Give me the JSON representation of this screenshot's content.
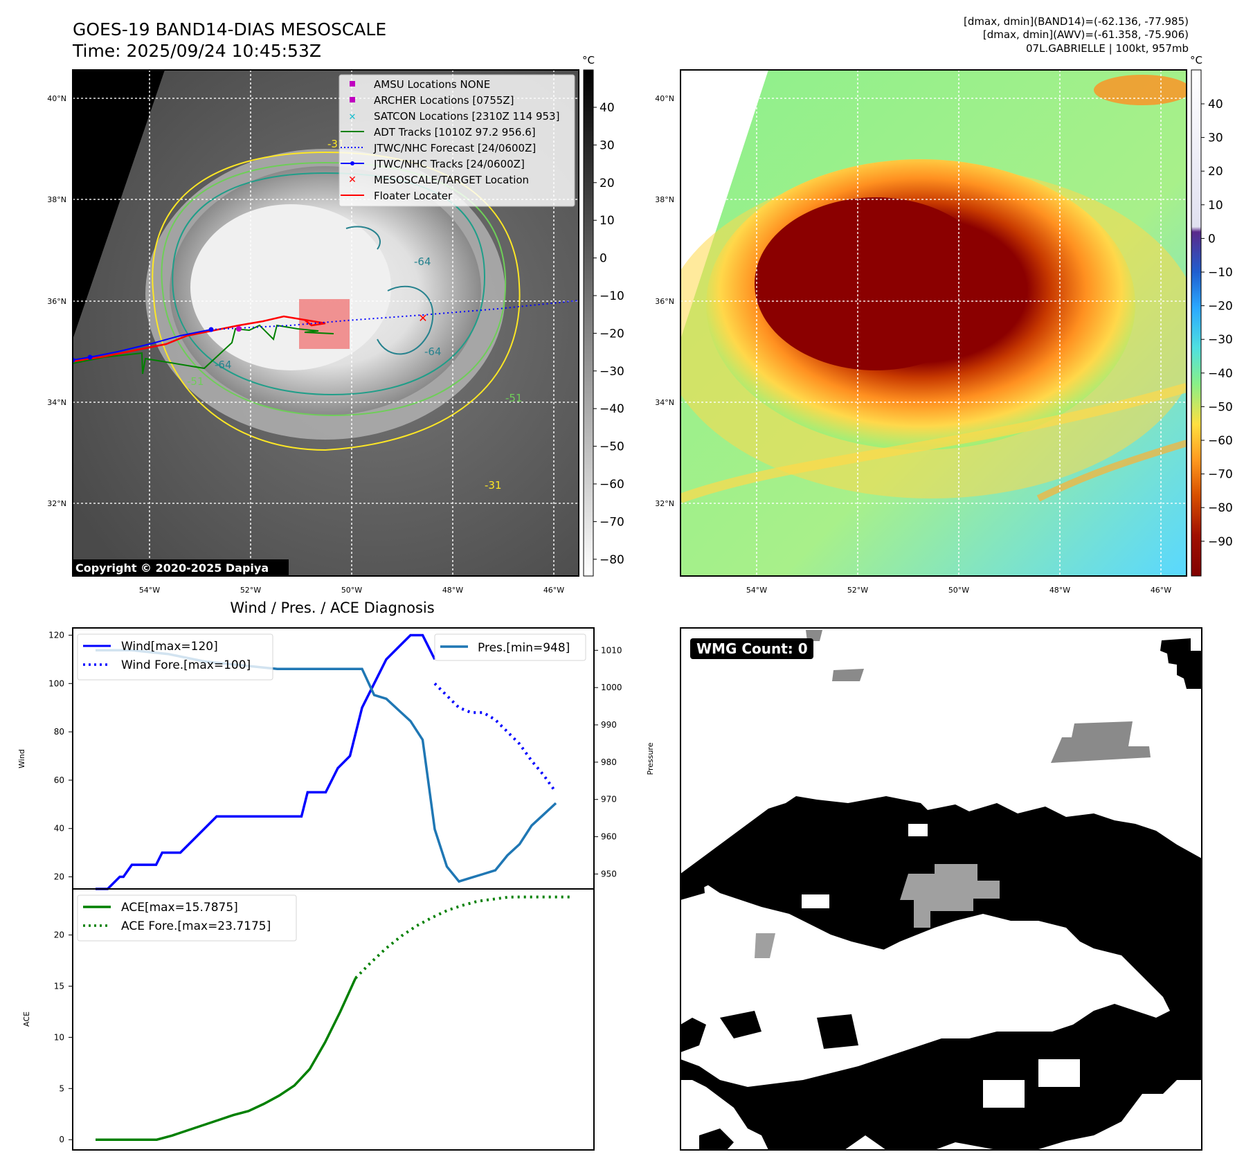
{
  "header": {
    "title_line1": "GOES-19 BAND14-DIAS MESOSCALE",
    "title_line2": "Time: 2025/09/24 10:45:53Z",
    "info_line1": "[dmax, dmin](BAND14)=(-62.136, -77.985)",
    "info_line2": "[dmax, dmin](AWV)=(-61.358, -75.906)",
    "info_line3": "07L.GABRIELLE | 100kt, 957mb"
  },
  "maps": {
    "unit": "°C",
    "lat_labels": [
      "40°N",
      "38°N",
      "36°N",
      "34°N",
      "32°N"
    ],
    "lon_labels": [
      "54°W",
      "52°W",
      "50°W",
      "48°W",
      "46°W"
    ],
    "copyright": "Copyright © 2020-2025 Dapiya",
    "contour_labels": [
      "-64",
      "-64",
      "-64",
      "-51",
      "-51",
      "-31",
      "-31"
    ],
    "left_colorbar_ticks": [
      "40",
      "30",
      "20",
      "10",
      "0",
      "−10",
      "−20",
      "−30",
      "−40",
      "−50",
      "−60",
      "−70",
      "−80"
    ],
    "right_colorbar_ticks": [
      "40",
      "30",
      "20",
      "10",
      "0",
      "−10",
      "−20",
      "−30",
      "−40",
      "−50",
      "−60",
      "−70",
      "−80",
      "−90"
    ],
    "legend": [
      {
        "label": "AMSU Locations NONE",
        "marker": "square",
        "color": "#c000c0"
      },
      {
        "label": "ARCHER Locations [0755Z]",
        "marker": "square",
        "color": "#c000c0"
      },
      {
        "label": "SATCON Locations [2310Z 114 953]",
        "marker": "x",
        "color": "#17becf"
      },
      {
        "label": "ADT Tracks [1010Z 97.2 956.6]",
        "marker": "line",
        "color": "#008000"
      },
      {
        "label": "JTWC/NHC Forecast [24/0600Z]",
        "marker": "dotted",
        "color": "#0000ff"
      },
      {
        "label": "JTWC/NHC Tracks [24/0600Z]",
        "marker": "line-dot",
        "color": "#0000ff"
      },
      {
        "label": "MESOSCALE/TARGET Location",
        "marker": "x",
        "color": "#ff0000"
      },
      {
        "label": "Floater Locater",
        "marker": "line",
        "color": "#ff0000"
      }
    ]
  },
  "chart_data": [
    {
      "type": "line",
      "title": "Wind / Pres. / ACE Diagnosis",
      "ylabel": "Wind",
      "ylabel_right": "Pressure",
      "ylim": [
        15,
        123
      ],
      "ylim_right": [
        946,
        1016
      ],
      "y_ticks": [
        120,
        100,
        80,
        60,
        40,
        20
      ],
      "y_ticks_right": [
        1010,
        1000,
        990,
        980,
        970,
        960,
        950
      ],
      "legend_left": [
        "Wind[max=120]",
        "Wind Fore.[max=100]"
      ],
      "legend_right": [
        "Pres.[min=948]"
      ],
      "series": [
        {
          "name": "Wind",
          "axis": "left",
          "style": "solid",
          "color": "#0000ff",
          "x": [
            0,
            1,
            2,
            2.3,
            3,
            3.5,
            4,
            5,
            5.5,
            6,
            7,
            8,
            10,
            11,
            12,
            13,
            14,
            15,
            16,
            17,
            17.5,
            18,
            19,
            19.5,
            20,
            21,
            22,
            23,
            24,
            25,
            26,
            27,
            28
          ],
          "y": [
            15,
            15,
            20,
            20,
            25,
            25,
            25,
            25,
            30,
            30,
            30,
            35,
            45,
            45,
            45,
            45,
            45,
            45,
            45,
            45,
            55,
            55,
            55,
            60,
            65,
            70,
            90,
            100,
            110,
            115,
            120,
            120,
            110
          ]
        },
        {
          "name": "Wind Fore.",
          "axis": "left",
          "style": "dotted",
          "color": "#0000ff",
          "x": [
            28,
            30,
            31,
            32,
            33,
            34,
            35,
            36,
            37,
            38
          ],
          "y": [
            100,
            90,
            88,
            88,
            85,
            80,
            75,
            68,
            62,
            55
          ]
        },
        {
          "name": "Pres.",
          "axis": "right",
          "style": "solid",
          "color": "#1f77b4",
          "x": [
            0,
            3,
            6,
            9,
            12,
            15,
            17,
            20,
            22,
            23,
            24,
            25,
            26,
            27,
            28,
            29,
            30,
            31,
            32,
            33,
            34,
            35,
            36,
            37,
            38
          ],
          "y": [
            1010,
            1010,
            1009,
            1007,
            1006,
            1005,
            1005,
            1005,
            1005,
            998,
            997,
            994,
            991,
            986,
            962,
            952,
            948,
            949,
            950,
            951,
            955,
            958,
            963,
            966,
            969
          ]
        }
      ]
    },
    {
      "type": "line",
      "ylabel": "ACE",
      "ylim": [
        -1,
        24.5
      ],
      "y_ticks": [
        20,
        15,
        10,
        5,
        0
      ],
      "legend": [
        "ACE[max=15.7875]",
        "ACE Fore.[max=23.7175]"
      ],
      "series": [
        {
          "name": "ACE",
          "style": "solid",
          "color": "#008000",
          "x": [
            0,
            2,
            4,
            6,
            8,
            10,
            12,
            14,
            16,
            18,
            20,
            22,
            24,
            26,
            28,
            30,
            32,
            34
          ],
          "y": [
            0,
            0,
            0,
            0,
            0,
            0.4,
            0.9,
            1.4,
            1.9,
            2.4,
            2.8,
            3.5,
            4.3,
            5.3,
            6.9,
            9.5,
            12.5,
            15.7875
          ]
        },
        {
          "name": "ACE Fore.",
          "style": "dotted",
          "color": "#008000",
          "x": [
            34,
            36,
            38,
            40,
            42,
            44,
            46,
            48,
            50,
            52,
            54,
            56,
            58,
            60,
            62
          ],
          "y": [
            15.7875,
            17.3,
            18.7,
            19.9,
            20.9,
            21.7,
            22.4,
            22.9,
            23.3,
            23.5,
            23.7,
            23.7175,
            23.7175,
            23.7175,
            23.7175
          ]
        }
      ]
    }
  ],
  "wmg": {
    "label": "WMG Count: 0"
  }
}
